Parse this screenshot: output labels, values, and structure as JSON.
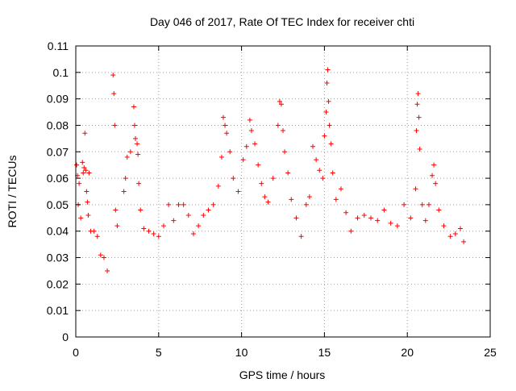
{
  "chart_data": {
    "type": "scatter",
    "title": "Day 046 of 2017, Rate Of TEC Index for receiver chti",
    "xlabel": "GPS time / hours",
    "ylabel": "ROTI / TECUs",
    "xlim": [
      0,
      25
    ],
    "ylim": [
      0,
      0.11
    ],
    "xticks": [
      0,
      5,
      10,
      15,
      20,
      25
    ],
    "xtick_labels": [
      "0",
      "5",
      "10",
      "15",
      "20",
      "25"
    ],
    "yticks": [
      0,
      0.01,
      0.02,
      0.03,
      0.04,
      0.05,
      0.06,
      0.07,
      0.08,
      0.09,
      0.1,
      0.11
    ],
    "ytick_labels": [
      "0",
      "0.01",
      "0.02",
      "0.03",
      "0.04",
      "0.05",
      "0.06",
      "0.07",
      "0.08",
      "0.09",
      "0.1",
      "0.11"
    ],
    "grid": true,
    "marker": "+",
    "color": "#ff0000",
    "series": [
      {
        "points": [
          [
            0.05,
            0.065
          ],
          [
            0.1,
            0.061
          ],
          [
            0.15,
            0.05
          ],
          [
            0.2,
            0.058
          ],
          [
            0.3,
            0.045
          ],
          [
            0.4,
            0.066
          ],
          [
            0.45,
            0.062
          ],
          [
            0.5,
            0.064
          ],
          [
            0.55,
            0.077
          ],
          [
            0.6,
            0.063
          ],
          [
            0.65,
            0.055
          ],
          [
            0.7,
            0.051
          ],
          [
            0.75,
            0.046
          ],
          [
            0.8,
            0.062
          ],
          [
            0.9,
            0.04
          ],
          [
            1.1,
            0.04
          ],
          [
            1.3,
            0.038
          ],
          [
            1.5,
            0.031
          ],
          [
            1.7,
            0.03
          ],
          [
            1.9,
            0.025
          ],
          [
            2.25,
            0.099
          ],
          [
            2.3,
            0.092
          ],
          [
            2.35,
            0.08
          ],
          [
            2.4,
            0.048
          ],
          [
            2.5,
            0.042
          ],
          [
            2.9,
            0.055
          ],
          [
            3.0,
            0.06
          ],
          [
            3.1,
            0.068
          ],
          [
            3.3,
            0.07
          ],
          [
            3.5,
            0.087
          ],
          [
            3.55,
            0.08
          ],
          [
            3.6,
            0.075
          ],
          [
            3.7,
            0.073
          ],
          [
            3.75,
            0.069
          ],
          [
            3.8,
            0.058
          ],
          [
            3.9,
            0.048
          ],
          [
            4.1,
            0.041
          ],
          [
            4.4,
            0.04
          ],
          [
            4.7,
            0.039
          ],
          [
            5.0,
            0.038
          ],
          [
            5.3,
            0.042
          ],
          [
            5.6,
            0.05
          ],
          [
            5.9,
            0.044
          ],
          [
            6.2,
            0.05
          ],
          [
            6.5,
            0.05
          ],
          [
            6.8,
            0.046
          ],
          [
            7.1,
            0.039
          ],
          [
            7.4,
            0.042
          ],
          [
            7.7,
            0.046
          ],
          [
            8.0,
            0.048
          ],
          [
            8.3,
            0.05
          ],
          [
            8.6,
            0.057
          ],
          [
            8.8,
            0.068
          ],
          [
            8.9,
            0.083
          ],
          [
            9.0,
            0.08
          ],
          [
            9.1,
            0.077
          ],
          [
            9.3,
            0.07
          ],
          [
            9.5,
            0.06
          ],
          [
            9.8,
            0.055
          ],
          [
            10.1,
            0.067
          ],
          [
            10.3,
            0.072
          ],
          [
            10.5,
            0.082
          ],
          [
            10.6,
            0.078
          ],
          [
            10.8,
            0.073
          ],
          [
            11.0,
            0.065
          ],
          [
            11.2,
            0.058
          ],
          [
            11.4,
            0.053
          ],
          [
            11.6,
            0.051
          ],
          [
            11.9,
            0.06
          ],
          [
            12.2,
            0.08
          ],
          [
            12.3,
            0.089
          ],
          [
            12.4,
            0.088
          ],
          [
            12.5,
            0.078
          ],
          [
            12.6,
            0.07
          ],
          [
            12.8,
            0.062
          ],
          [
            13.0,
            0.052
          ],
          [
            13.3,
            0.045
          ],
          [
            13.6,
            0.038
          ],
          [
            13.9,
            0.05
          ],
          [
            14.1,
            0.053
          ],
          [
            14.3,
            0.072
          ],
          [
            14.5,
            0.067
          ],
          [
            14.7,
            0.063
          ],
          [
            14.9,
            0.06
          ],
          [
            15.0,
            0.076
          ],
          [
            15.1,
            0.085
          ],
          [
            15.15,
            0.096
          ],
          [
            15.2,
            0.101
          ],
          [
            15.25,
            0.089
          ],
          [
            15.3,
            0.08
          ],
          [
            15.4,
            0.073
          ],
          [
            15.5,
            0.062
          ],
          [
            15.7,
            0.052
          ],
          [
            16.0,
            0.056
          ],
          [
            16.3,
            0.047
          ],
          [
            16.6,
            0.04
          ],
          [
            17.0,
            0.045
          ],
          [
            17.4,
            0.046
          ],
          [
            17.8,
            0.045
          ],
          [
            18.2,
            0.044
          ],
          [
            18.6,
            0.048
          ],
          [
            19.0,
            0.043
          ],
          [
            19.4,
            0.042
          ],
          [
            19.8,
            0.05
          ],
          [
            20.2,
            0.045
          ],
          [
            20.5,
            0.056
          ],
          [
            20.55,
            0.078
          ],
          [
            20.6,
            0.088
          ],
          [
            20.65,
            0.092
          ],
          [
            20.7,
            0.083
          ],
          [
            20.75,
            0.071
          ],
          [
            20.9,
            0.05
          ],
          [
            21.1,
            0.044
          ],
          [
            21.3,
            0.05
          ],
          [
            21.5,
            0.061
          ],
          [
            21.6,
            0.065
          ],
          [
            21.7,
            0.058
          ],
          [
            21.9,
            0.048
          ],
          [
            22.2,
            0.042
          ],
          [
            22.6,
            0.038
          ],
          [
            22.9,
            0.039
          ],
          [
            23.2,
            0.041
          ],
          [
            23.4,
            0.036
          ]
        ]
      }
    ]
  }
}
